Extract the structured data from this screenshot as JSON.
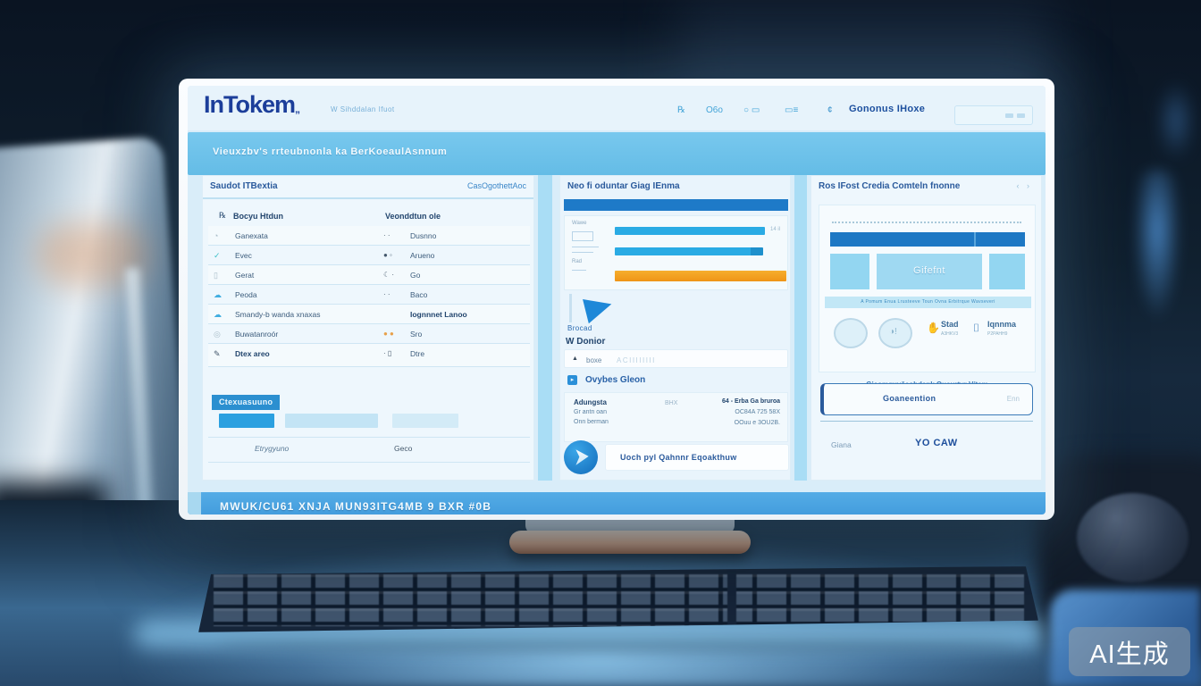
{
  "theme": {
    "accent_blue": "#1e7ac8",
    "banner_blue": "#70c4ec",
    "bar_orange": "#f09c1c",
    "footer_blue": "#48a4e0"
  },
  "watermark": {
    "label": "AI生成"
  },
  "screen": {
    "header": {
      "logo": "InTokem",
      "logo_mark": "„",
      "logo_tagline": "W Sihddalan Ifuot",
      "nav": {
        "icon1": "℞",
        "icon2": "O6o",
        "icon3": "○ ▭",
        "icon4": "▭≡",
        "icon5": "¢",
        "menu_label": "Gononus IHoxe"
      }
    },
    "banner": {
      "text": "Vieuxzbv's rrteubnonla ka BerKoeaulAsnnum"
    },
    "left_panel": {
      "title": "Saudot ITBextia",
      "action": "CasOgothettAoc",
      "col1_icon": "℞",
      "col1": "Bocyu Htdun",
      "col2": "Veonddtun ole",
      "rows": [
        {
          "l_icon": "◔",
          "left": "Ganexata",
          "r_icon": "· ·",
          "right": "Dusnno"
        },
        {
          "l_icon": "✓",
          "left": "Evec",
          "r_icon": "● ◦",
          "right": "Arueno"
        },
        {
          "l_icon": "▯",
          "left": "Gerat",
          "r_icon": "☾ ·",
          "right": "Go"
        },
        {
          "l_icon": "☁",
          "left": "Peoda",
          "r_icon": "· ·",
          "right": "Baco"
        },
        {
          "l_icon": "☁",
          "left": "Smandy-b wanda xnaxas",
          "r_icon": "",
          "right": "Iognnnet Lanoo"
        },
        {
          "l_icon": "◎",
          "left": "Buwatanroór",
          "r_icon": "● ●",
          "right": "Sro"
        },
        {
          "l_icon": "✎",
          "left": "Dtex areo",
          "r_icon": "· ▯",
          "right": "Dtre"
        }
      ],
      "badge": "Ctexuasuuno",
      "footer_left": "Etrygyuno",
      "footer_right": "Geco"
    },
    "middle_panel": {
      "title": "Neo fi oduntar Giag IEnma",
      "mini_label_top": "Wawe",
      "mini_label_bottom": "Rad",
      "bars_value": "14 il",
      "logo_caption": "Brocad",
      "section_title": "W Donior",
      "input_icon": "▲",
      "input_label": "boxe",
      "input_value": "ACIIIIIIII",
      "link_icon": "▸",
      "link_label": "Ovybes Gleon",
      "card": {
        "line1": "Adungsta",
        "line2": "Gr antn oan",
        "line3": "Onn berman",
        "center": "BHX",
        "r1": "64 - Erba Ga bruroa",
        "r2": "OC84A 725 58X",
        "r3": "OOuu e 3OU2B."
      },
      "cta": "Uoch pyl Qahnnr Eqoakthuw"
    },
    "right_panel": {
      "title": "Ros IFost Credia Comteln fnonne",
      "pager": "‹ ›",
      "gift_label": "Gifefnt",
      "strip_text": "A Pomum Enua Lrusteeve Toun Ovna Erbitrque Wavseveri",
      "logo2_glyph": "◑!",
      "brand1_glyph": "✋",
      "brand1": "Stad",
      "brand1_sub": "A3HKV3",
      "brand2_glyph": "⌷",
      "brand2": "Iqnnma",
      "brand2_sub": "P2PAHH9",
      "caption": "Gieomguvšeobdank Ouçurtyr Vítam",
      "box_label": "Goaneention",
      "box_hint": "Enn",
      "footer_left": "Giana",
      "footer_right": "YO CAW"
    },
    "footer": {
      "text": "MWUK/CU61 XNJA MUN93ITG4MB 9 BXR #0B"
    }
  }
}
